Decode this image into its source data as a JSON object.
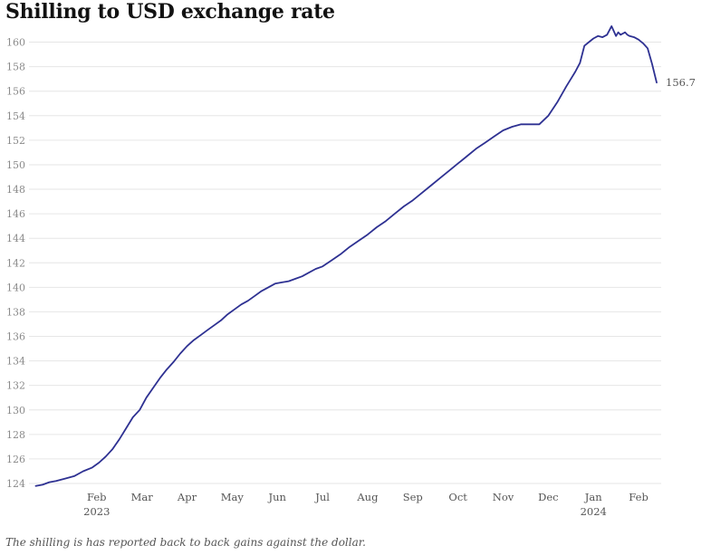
{
  "chart_data": {
    "type": "line",
    "title": "Shilling to USD exchange rate",
    "caption": "The shilling is has reported back to back gains against the dollar.",
    "ylim": [
      124,
      161
    ],
    "yticks": [
      124,
      126,
      128,
      130,
      132,
      134,
      136,
      138,
      140,
      142,
      144,
      146,
      148,
      150,
      152,
      154,
      156,
      158,
      160
    ],
    "xlim": [
      -0.5,
      13.5
    ],
    "xticks": [
      {
        "x": 1,
        "label": "Feb",
        "sub": "2023"
      },
      {
        "x": 2,
        "label": "Mar",
        "sub": ""
      },
      {
        "x": 3,
        "label": "Apr",
        "sub": ""
      },
      {
        "x": 4,
        "label": "May",
        "sub": ""
      },
      {
        "x": 5,
        "label": "Jun",
        "sub": ""
      },
      {
        "x": 6,
        "label": "Jul",
        "sub": ""
      },
      {
        "x": 7,
        "label": "Aug",
        "sub": ""
      },
      {
        "x": 8,
        "label": "Sep",
        "sub": ""
      },
      {
        "x": 9,
        "label": "Oct",
        "sub": ""
      },
      {
        "x": 10,
        "label": "Nov",
        "sub": ""
      },
      {
        "x": 11,
        "label": "Dec",
        "sub": ""
      },
      {
        "x": 12,
        "label": "Jan",
        "sub": "2024"
      },
      {
        "x": 13,
        "label": "Feb",
        "sub": ""
      }
    ],
    "grid": true,
    "series": [
      {
        "color": "#2e3192",
        "end_label": "156.7",
        "x": [
          -0.35,
          -0.2,
          -0.05,
          0.1,
          0.3,
          0.5,
          0.7,
          0.9,
          1.05,
          1.2,
          1.35,
          1.5,
          1.65,
          1.8,
          1.95,
          2.1,
          2.25,
          2.4,
          2.55,
          2.7,
          2.85,
          3.0,
          3.15,
          3.3,
          3.45,
          3.6,
          3.75,
          3.9,
          4.05,
          4.2,
          4.35,
          4.5,
          4.65,
          4.8,
          4.95,
          5.1,
          5.25,
          5.4,
          5.55,
          5.7,
          5.85,
          6.0,
          6.2,
          6.4,
          6.6,
          6.8,
          7.0,
          7.2,
          7.4,
          7.6,
          7.8,
          8.0,
          8.2,
          8.4,
          8.6,
          8.8,
          9.0,
          9.2,
          9.4,
          9.6,
          9.8,
          10.0,
          10.2,
          10.4,
          10.6,
          10.8,
          11.0,
          11.2,
          11.4,
          11.5,
          11.6,
          11.7,
          11.8,
          11.9,
          12.0,
          12.1,
          12.2,
          12.3,
          12.4,
          12.5,
          12.55,
          12.6,
          12.65,
          12.7,
          12.75,
          12.8,
          12.9,
          13.0,
          13.1,
          13.2,
          13.3,
          13.4
        ],
        "values": [
          123.8,
          123.9,
          124.1,
          124.2,
          124.4,
          124.6,
          125.0,
          125.3,
          125.7,
          126.2,
          126.8,
          127.6,
          128.5,
          129.4,
          130.0,
          131.0,
          131.8,
          132.6,
          133.3,
          133.9,
          134.6,
          135.2,
          135.7,
          136.1,
          136.5,
          136.9,
          137.3,
          137.8,
          138.2,
          138.6,
          138.9,
          139.3,
          139.7,
          140.0,
          140.3,
          140.4,
          140.5,
          140.7,
          140.9,
          141.2,
          141.5,
          141.7,
          142.2,
          142.7,
          143.3,
          143.8,
          144.3,
          144.9,
          145.4,
          146.0,
          146.6,
          147.1,
          147.7,
          148.3,
          148.9,
          149.5,
          150.1,
          150.7,
          151.3,
          151.8,
          152.3,
          152.8,
          153.1,
          153.3,
          153.3,
          153.3,
          154.0,
          155.1,
          156.4,
          157.0,
          157.6,
          158.3,
          159.7,
          160.0,
          160.3,
          160.5,
          160.4,
          160.6,
          161.3,
          160.5,
          160.8,
          160.6,
          160.7,
          160.8,
          160.6,
          160.5,
          160.4,
          160.2,
          159.9,
          159.5,
          158.2,
          156.7
        ]
      }
    ]
  }
}
